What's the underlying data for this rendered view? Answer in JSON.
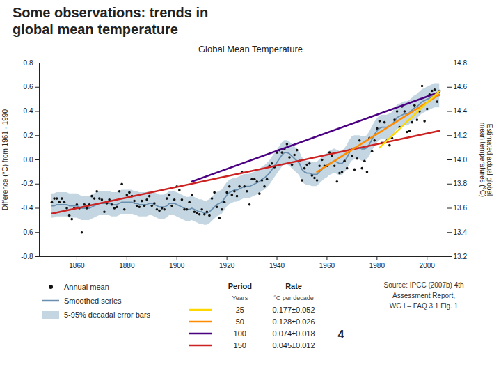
{
  "chart_data": {
    "type": "line",
    "header": [
      "Some observations: trends in",
      "global mean temperature"
    ],
    "title": "Global Mean Temperature",
    "x": [
      1850,
      1851,
      1852,
      1853,
      1854,
      1855,
      1856,
      1857,
      1858,
      1859,
      1860,
      1861,
      1862,
      1863,
      1864,
      1865,
      1866,
      1867,
      1868,
      1869,
      1870,
      1871,
      1872,
      1873,
      1874,
      1875,
      1876,
      1877,
      1878,
      1879,
      1880,
      1881,
      1882,
      1883,
      1884,
      1885,
      1886,
      1887,
      1888,
      1889,
      1890,
      1891,
      1892,
      1893,
      1894,
      1895,
      1896,
      1897,
      1898,
      1899,
      1900,
      1901,
      1902,
      1903,
      1904,
      1905,
      1906,
      1907,
      1908,
      1909,
      1910,
      1911,
      1912,
      1913,
      1914,
      1915,
      1916,
      1917,
      1918,
      1919,
      1920,
      1921,
      1922,
      1923,
      1924,
      1925,
      1926,
      1927,
      1928,
      1929,
      1930,
      1931,
      1932,
      1933,
      1934,
      1935,
      1936,
      1937,
      1938,
      1939,
      1940,
      1941,
      1942,
      1943,
      1944,
      1945,
      1946,
      1947,
      1948,
      1949,
      1950,
      1951,
      1952,
      1953,
      1954,
      1955,
      1956,
      1957,
      1958,
      1959,
      1960,
      1961,
      1962,
      1963,
      1964,
      1965,
      1966,
      1967,
      1968,
      1969,
      1970,
      1971,
      1972,
      1973,
      1974,
      1975,
      1976,
      1977,
      1978,
      1979,
      1980,
      1981,
      1982,
      1983,
      1984,
      1985,
      1986,
      1987,
      1988,
      1989,
      1990,
      1991,
      1992,
      1993,
      1994,
      1995,
      1996,
      1997,
      1998,
      1999,
      2000,
      2001,
      2002,
      2003,
      2004,
      2005
    ],
    "xlim": [
      1845,
      2008
    ],
    "xticks": [
      1860,
      1880,
      1900,
      1920,
      1940,
      1960,
      1980,
      2000
    ],
    "ylim": [
      -0.8,
      0.8
    ],
    "yticks": [
      -0.8,
      -0.6,
      -0.4,
      -0.2,
      {
        "value": 0,
        "label": "0.0"
      },
      0.2,
      0.4,
      0.6,
      0.8
    ],
    "ylabel": "Difference (°C) from 1961 - 1990",
    "y2lim": [
      13.2,
      14.8
    ],
    "y2ticks": [
      13.2,
      13.4,
      13.6,
      13.8,
      {
        "value": 14,
        "label": "14.0"
      },
      14.2,
      14.4,
      14.6,
      14.8
    ],
    "y2label": "Estimated actual global\nmean temperatures (°C)",
    "series": [
      {
        "name": "Annual mean",
        "type": "scatter",
        "color": "#111111",
        "values": [
          -0.35,
          -0.32,
          -0.32,
          -0.35,
          -0.32,
          -0.35,
          -0.4,
          -0.46,
          -0.49,
          -0.4,
          -0.37,
          -0.4,
          -0.6,
          -0.37,
          -0.4,
          -0.37,
          -0.3,
          -0.32,
          -0.26,
          -0.32,
          -0.33,
          -0.43,
          -0.36,
          -0.33,
          -0.37,
          -0.4,
          -0.39,
          -0.26,
          -0.2,
          -0.41,
          -0.29,
          -0.27,
          -0.3,
          -0.34,
          -0.38,
          -0.39,
          -0.34,
          -0.38,
          -0.33,
          -0.3,
          -0.38,
          -0.36,
          -0.41,
          -0.42,
          -0.4,
          -0.41,
          -0.32,
          -0.29,
          -0.38,
          -0.33,
          -0.22,
          -0.25,
          -0.33,
          -0.41,
          -0.41,
          -0.35,
          -0.29,
          -0.43,
          -0.44,
          -0.45,
          -0.41,
          -0.45,
          -0.43,
          -0.46,
          -0.32,
          -0.27,
          -0.39,
          -0.48,
          -0.41,
          -0.35,
          -0.27,
          -0.22,
          -0.29,
          -0.26,
          -0.3,
          -0.22,
          -0.1,
          -0.22,
          -0.26,
          -0.37,
          -0.16,
          -0.16,
          -0.18,
          -0.28,
          -0.17,
          -0.22,
          -0.16,
          -0.05,
          -0.03,
          -0.06,
          0.06,
          0.08,
          0.06,
          0.09,
          0.13,
          0.02,
          -0.04,
          0.04,
          0.08,
          -0.01,
          -0.17,
          -0.07,
          -0.04,
          -0.03,
          -0.13,
          -0.15,
          -0.17,
          -0.05,
          0.0,
          -0.05,
          -0.05,
          0.06,
          0.03,
          -0.05,
          -0.18,
          -0.11,
          -0.1,
          -0.01,
          -0.07,
          0.08,
          0.03,
          -0.08,
          0.01,
          0.16,
          -0.07,
          -0.01,
          -0.1,
          0.18,
          0.07,
          0.16,
          0.26,
          0.32,
          0.14,
          0.31,
          0.16,
          0.12,
          0.18,
          0.33,
          0.4,
          0.27,
          0.44,
          0.4,
          0.23,
          0.24,
          0.31,
          0.45,
          0.33,
          0.4,
          0.61,
          0.32,
          0.42,
          0.54,
          0.57,
          0.58,
          0.48,
          0.57
        ]
      },
      {
        "name": "Smoothed series",
        "type": "line",
        "color": "#6A8FAF",
        "values": [
          -0.38,
          -0.38,
          -0.37,
          -0.37,
          -0.37,
          -0.37,
          -0.37,
          -0.38,
          -0.38,
          -0.38,
          -0.38,
          -0.39,
          -0.4,
          -0.4,
          -0.4,
          -0.4,
          -0.39,
          -0.38,
          -0.37,
          -0.36,
          -0.36,
          -0.36,
          -0.36,
          -0.36,
          -0.37,
          -0.37,
          -0.37,
          -0.36,
          -0.35,
          -0.35,
          -0.35,
          -0.35,
          -0.35,
          -0.36,
          -0.36,
          -0.37,
          -0.37,
          -0.37,
          -0.37,
          -0.36,
          -0.36,
          -0.37,
          -0.38,
          -0.39,
          -0.39,
          -0.39,
          -0.38,
          -0.36,
          -0.36,
          -0.36,
          -0.37,
          -0.38,
          -0.39,
          -0.4,
          -0.41,
          -0.41,
          -0.4,
          -0.41,
          -0.42,
          -0.43,
          -0.43,
          -0.44,
          -0.44,
          -0.43,
          -0.41,
          -0.39,
          -0.37,
          -0.36,
          -0.35,
          -0.32,
          -0.29,
          -0.27,
          -0.26,
          -0.25,
          -0.25,
          -0.24,
          -0.23,
          -0.22,
          -0.22,
          -0.22,
          -0.21,
          -0.2,
          -0.19,
          -0.18,
          -0.16,
          -0.15,
          -0.13,
          -0.11,
          -0.08,
          -0.05,
          -0.02,
          0.01,
          0.04,
          0.06,
          0.06,
          0.05,
          0.03,
          0.01,
          -0.01,
          -0.03,
          -0.08,
          -0.1,
          -0.11,
          -0.11,
          -0.12,
          -0.12,
          -0.12,
          -0.1,
          -0.08,
          -0.06,
          -0.05,
          -0.03,
          -0.02,
          -0.01,
          -0.02,
          -0.03,
          -0.03,
          -0.01,
          0.02,
          0.06,
          0.09,
          0.1,
          0.1,
          0.1,
          0.09,
          0.09,
          0.1,
          0.13,
          0.17,
          0.21,
          0.24,
          0.26,
          0.27,
          0.27,
          0.27,
          0.28,
          0.29,
          0.32,
          0.35,
          0.36,
          0.37,
          0.38,
          0.38,
          0.39,
          0.41,
          0.43,
          0.44,
          0.46,
          0.48,
          0.49,
          0.5,
          0.51,
          0.52,
          0.53,
          0.53,
          0.53
        ]
      },
      {
        "name": "5-95% decadal error bars",
        "type": "area",
        "color": "#AFC8D8",
        "lower": [
          -0.48,
          -0.48,
          -0.47,
          -0.47,
          -0.47,
          -0.47,
          -0.47,
          -0.48,
          -0.48,
          -0.48,
          -0.48,
          -0.49,
          -0.5,
          -0.5,
          -0.5,
          -0.5,
          -0.49,
          -0.48,
          -0.47,
          -0.46,
          -0.46,
          -0.46,
          -0.46,
          -0.46,
          -0.47,
          -0.47,
          -0.47,
          -0.46,
          -0.45,
          -0.45,
          -0.45,
          -0.45,
          -0.45,
          -0.46,
          -0.46,
          -0.47,
          -0.47,
          -0.47,
          -0.47,
          -0.46,
          -0.46,
          -0.47,
          -0.48,
          -0.49,
          -0.49,
          -0.49,
          -0.48,
          -0.46,
          -0.46,
          -0.46,
          -0.47,
          -0.48,
          -0.49,
          -0.5,
          -0.51,
          -0.51,
          -0.5,
          -0.51,
          -0.52,
          -0.53,
          -0.53,
          -0.54,
          -0.54,
          -0.53,
          -0.51,
          -0.49,
          -0.47,
          -0.46,
          -0.45,
          -0.42,
          -0.39,
          -0.37,
          -0.36,
          -0.35,
          -0.35,
          -0.34,
          -0.33,
          -0.32,
          -0.32,
          -0.32,
          -0.31,
          -0.3,
          -0.29,
          -0.28,
          -0.26,
          -0.25,
          -0.23,
          -0.21,
          -0.18,
          -0.15,
          -0.12,
          -0.09,
          -0.06,
          -0.04,
          -0.04,
          -0.05,
          -0.07,
          -0.09,
          -0.11,
          -0.13,
          -0.18,
          -0.2,
          -0.21,
          -0.21,
          -0.22,
          -0.22,
          -0.22,
          -0.2,
          -0.18,
          -0.16,
          -0.15,
          -0.13,
          -0.12,
          -0.11,
          -0.12,
          -0.13,
          -0.13,
          -0.11,
          -0.08,
          -0.04,
          -0.01,
          0.0,
          0.0,
          0.0,
          -0.01,
          -0.01,
          0.0,
          0.03,
          0.07,
          0.11,
          0.14,
          0.16,
          0.17,
          0.17,
          0.17,
          0.18,
          0.19,
          0.22,
          0.25,
          0.26,
          0.27,
          0.28,
          0.28,
          0.29,
          0.31,
          0.33,
          0.34,
          0.36,
          0.38,
          0.39,
          0.4,
          0.41,
          0.42,
          0.43,
          0.43,
          0.43
        ],
        "upper": [
          -0.28,
          -0.28,
          -0.27,
          -0.27,
          -0.27,
          -0.27,
          -0.27,
          -0.28,
          -0.28,
          -0.28,
          -0.28,
          -0.29,
          -0.3,
          -0.3,
          -0.3,
          -0.3,
          -0.29,
          -0.28,
          -0.27,
          -0.26,
          -0.26,
          -0.26,
          -0.26,
          -0.26,
          -0.27,
          -0.27,
          -0.27,
          -0.26,
          -0.25,
          -0.25,
          -0.25,
          -0.25,
          -0.25,
          -0.26,
          -0.26,
          -0.27,
          -0.27,
          -0.27,
          -0.27,
          -0.26,
          -0.26,
          -0.27,
          -0.28,
          -0.29,
          -0.29,
          -0.29,
          -0.28,
          -0.26,
          -0.26,
          -0.26,
          -0.27,
          -0.28,
          -0.29,
          -0.3,
          -0.31,
          -0.31,
          -0.3,
          -0.31,
          -0.32,
          -0.33,
          -0.33,
          -0.34,
          -0.34,
          -0.33,
          -0.31,
          -0.29,
          -0.27,
          -0.26,
          -0.25,
          -0.22,
          -0.19,
          -0.17,
          -0.16,
          -0.15,
          -0.15,
          -0.14,
          -0.13,
          -0.12,
          -0.12,
          -0.12,
          -0.11,
          -0.1,
          -0.09,
          -0.08,
          -0.06,
          -0.05,
          -0.03,
          -0.01,
          0.02,
          0.05,
          0.08,
          0.11,
          0.14,
          0.16,
          0.16,
          0.15,
          0.13,
          0.11,
          0.09,
          0.07,
          0.02,
          0.0,
          -0.01,
          -0.01,
          -0.02,
          -0.02,
          -0.02,
          0.0,
          0.02,
          0.04,
          0.05,
          0.07,
          0.08,
          0.09,
          0.08,
          0.07,
          0.07,
          0.09,
          0.12,
          0.16,
          0.19,
          0.2,
          0.2,
          0.2,
          0.19,
          0.19,
          0.2,
          0.23,
          0.27,
          0.31,
          0.34,
          0.36,
          0.37,
          0.37,
          0.37,
          0.38,
          0.39,
          0.42,
          0.45,
          0.46,
          0.47,
          0.48,
          0.48,
          0.49,
          0.51,
          0.53,
          0.54,
          0.56,
          0.58,
          0.59,
          0.6,
          0.61,
          0.62,
          0.63,
          0.63,
          0.63
        ]
      }
    ],
    "trend_lines": [
      {
        "color": "#CC2222",
        "x": [
          1850,
          2005
        ],
        "values": [
          -0.445,
          0.24
        ]
      },
      {
        "color": "#4B0082",
        "x": [
          1906,
          2005
        ],
        "values": [
          -0.18,
          0.56
        ]
      },
      {
        "color": "#FF8C00",
        "x": [
          1956,
          2005
        ],
        "values": [
          -0.1,
          0.54
        ]
      },
      {
        "color": "#FFD700",
        "x": [
          1981,
          2005
        ],
        "values": [
          0.1,
          0.57
        ]
      }
    ],
    "rate_table": {
      "columns": [
        "Period",
        "Rate"
      ],
      "units": [
        "Years",
        "°C per decade"
      ],
      "rows": [
        {
          "period": "25",
          "rate": "0.177±0.052",
          "color": "#FFD700"
        },
        {
          "period": "50",
          "rate": "0.128±0.026",
          "color": "#FF8C00"
        },
        {
          "period": "100",
          "rate": "0.074±0.018",
          "color": "#4B0082"
        },
        {
          "period": "150",
          "rate": "0.045±0.012",
          "color": "#CC2222"
        }
      ]
    },
    "source": "Source: IPCC (2007b) 4th\nAssessment Report,\nWG I – FAQ 3.1 Fig. 1",
    "page_number": "4"
  }
}
